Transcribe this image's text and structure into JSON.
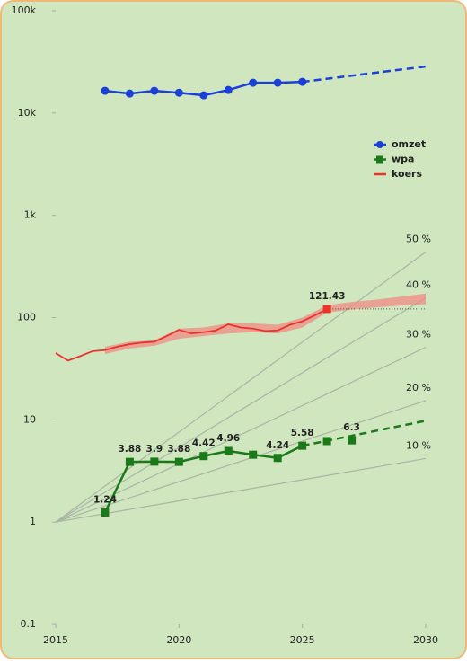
{
  "chart_data": {
    "type": "line",
    "log_scale": true,
    "xlim": [
      2015,
      2030
    ],
    "xticks": [
      2015,
      2020,
      2025,
      2030
    ],
    "ylim": [
      0.1,
      100000
    ],
    "yticks": [
      0.1,
      1,
      10,
      100,
      {
        "value": 1000,
        "label": "1k"
      },
      {
        "value": 10000,
        "label": "10k"
      },
      {
        "value": 100000,
        "label": "100k"
      }
    ],
    "legend_position": "upper right",
    "series": [
      {
        "name": "omzet",
        "color": "#1c3fd8",
        "marker": "circle",
        "x": [
          2017,
          2018,
          2019,
          2020,
          2021,
          2022,
          2023,
          2024,
          2025
        ],
        "values": [
          16500,
          15500,
          16500,
          15800,
          14900,
          16800,
          19800,
          19800,
          20200
        ],
        "projection": {
          "x": [
            2025,
            2030
          ],
          "values": [
            20200,
            28500
          ]
        }
      },
      {
        "name": "wpa",
        "color": "#1a7a1a",
        "marker": "square",
        "x": [
          2017,
          2018,
          2019,
          2020,
          2021,
          2022,
          2023,
          2024,
          2025,
          2026,
          2027
        ],
        "values": [
          1.24,
          3.88,
          3.9,
          3.88,
          4.42,
          4.96,
          4.56,
          4.24,
          5.58,
          6.2,
          6.3
        ],
        "value_labels": [
          "1.24",
          "3.88",
          "3.9",
          "3.88",
          "4.42",
          "4.96",
          null,
          "4.24",
          "5.58",
          null,
          "6.3"
        ],
        "projection": {
          "x": [
            2025,
            2030
          ],
          "values": [
            5.58,
            9.8
          ]
        }
      },
      {
        "name": "koers",
        "color": "#e8352a",
        "marker": "line",
        "x": [
          2015,
          2015.5,
          2016,
          2016.5,
          2017,
          2017.5,
          2018,
          2018.5,
          2019,
          2019.5,
          2020,
          2020.5,
          2021,
          2021.5,
          2022,
          2022.5,
          2023,
          2023.5,
          2024,
          2024.5,
          2025,
          2025.5,
          2026
        ],
        "values": [
          45,
          38,
          42,
          47,
          48,
          52,
          55,
          57,
          58,
          66,
          76,
          70,
          72,
          75,
          86,
          80,
          78,
          74,
          75,
          85,
          92,
          105,
          121.43
        ],
        "band": {
          "x": [
            2017,
            2018,
            2019,
            2020,
            2021,
            2022,
            2023,
            2024,
            2025,
            2026,
            2027,
            2028,
            2029,
            2030
          ],
          "low": [
            44,
            50,
            53,
            62,
            66,
            70,
            72,
            70,
            80,
            112,
            120,
            126,
            131,
            135
          ],
          "high": [
            52,
            58,
            60,
            78,
            80,
            88,
            88,
            85,
            100,
            132,
            142,
            150,
            160,
            172
          ]
        }
      }
    ],
    "growth_lines": [
      {
        "label": "10 %",
        "x": [
          2015,
          2030
        ],
        "values": [
          1,
          4.18
        ]
      },
      {
        "label": "20 %",
        "x": [
          2015,
          2030
        ],
        "values": [
          1,
          15.4
        ]
      },
      {
        "label": "30 %",
        "x": [
          2015,
          2030
        ],
        "values": [
          1,
          51.2
        ]
      },
      {
        "label": "40 %",
        "x": [
          2015,
          2030
        ],
        "values": [
          1,
          155.6
        ]
      },
      {
        "label": "50 %",
        "x": [
          2015,
          2030
        ],
        "values": [
          1,
          437.9
        ]
      }
    ]
  }
}
